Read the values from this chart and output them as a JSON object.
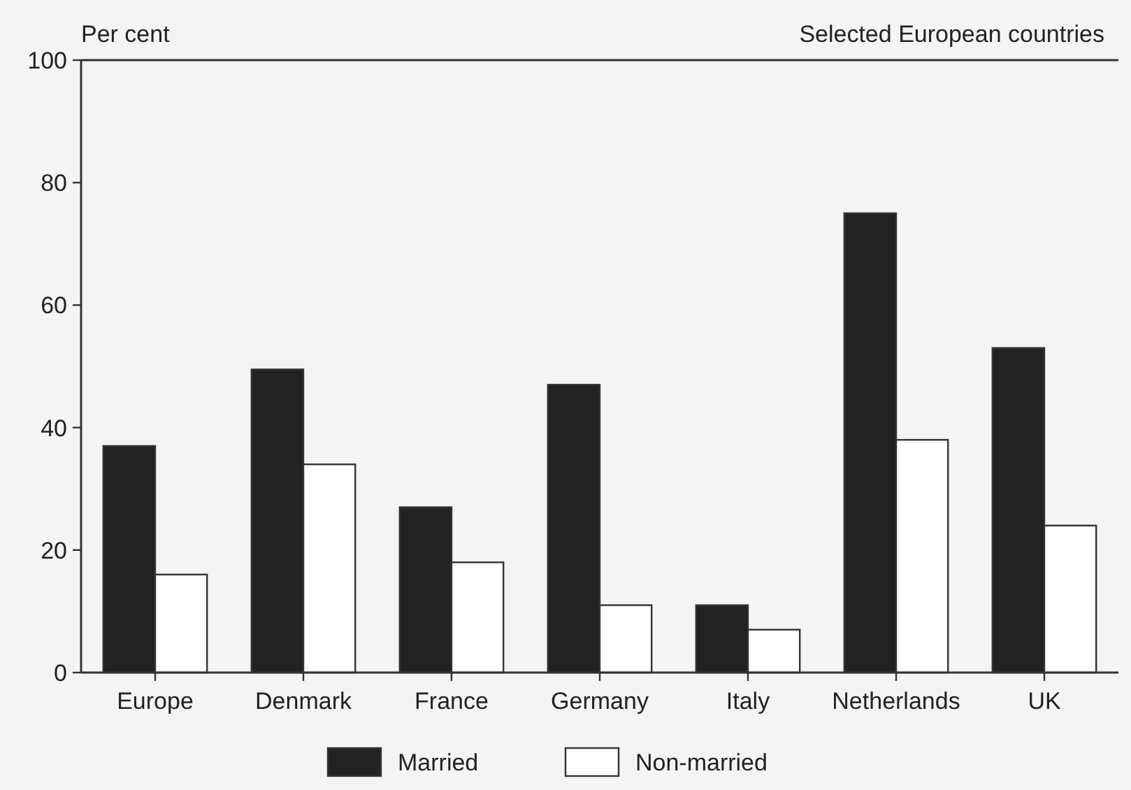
{
  "chart_data": {
    "type": "bar",
    "title": "Selected European countries",
    "ylabel": "Per cent",
    "categories": [
      "Europe",
      "Denmark",
      "France",
      "Germany",
      "Italy",
      "Netherlands",
      "UK"
    ],
    "series": [
      {
        "name": "Married",
        "color": "#222222",
        "values": [
          37,
          49.5,
          27,
          47,
          11,
          75,
          53
        ]
      },
      {
        "name": "Non-married",
        "color": "#ffffff",
        "values": [
          16,
          34,
          18,
          11,
          7,
          38,
          24
        ]
      }
    ],
    "ylim": [
      0,
      100
    ],
    "yticks": [
      0,
      20,
      40,
      60,
      80,
      100
    ],
    "grid": false,
    "legend": "bottom"
  }
}
